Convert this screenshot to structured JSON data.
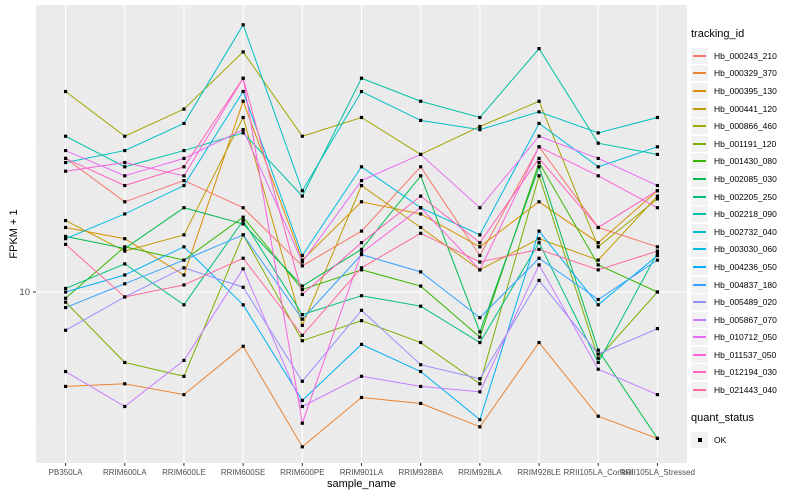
{
  "axes": {
    "y_title": "FPKM + 1",
    "x_title": "sample_name"
  },
  "legend": {
    "tracking_title": "tracking_id",
    "quant_title": "quant_status",
    "quant_ok_label": "OK"
  },
  "chart_data": {
    "type": "line",
    "title": "",
    "xlabel": "sample_name",
    "ylabel": "FPKM + 1",
    "y_scale": "log10",
    "grid": "on",
    "legend_position": "right",
    "panel_bg": "#EBEBEB",
    "grid_color": "#FFFFFF",
    "tick_label_color": "#4D4D4D",
    "point_marker": {
      "shape": "square",
      "color": "#000000",
      "size": 3.2
    },
    "y_ticks": [
      {
        "value": 10,
        "label": "10"
      }
    ],
    "y_minor_ticks": [
      3.162,
      31.623
    ],
    "ylim_log10": [
      0.41,
      2.03
    ],
    "x_categories": [
      "PB350LA",
      "RRIM600LA",
      "RRIM600LE",
      "RRIM600SE",
      "RRIM600PE",
      "RRIM901LA",
      "RRIM928BA",
      "RRIM928LA",
      "RRIM928LE",
      "RRII105LA_Control",
      "RRII105LA_Stressed"
    ],
    "quant_status_values": [
      "OK"
    ],
    "series": [
      {
        "name": "Hb_000243_210",
        "color": "#F8766D",
        "values": [
          30,
          21,
          25,
          20,
          12.4,
          16.5,
          28,
          13.5,
          33,
          17,
          14.5
        ]
      },
      {
        "name": "Hb_000329_370",
        "color": "#EA8331",
        "values": [
          4.6,
          4.7,
          4.3,
          6.4,
          2.8,
          4.2,
          4.0,
          3.3,
          6.6,
          3.6,
          3.0
        ]
      },
      {
        "name": "Hb_000395_130",
        "color": "#D89000",
        "values": [
          17,
          15.5,
          11.5,
          48,
          13,
          21,
          19,
          14.5,
          21,
          15,
          23
        ]
      },
      {
        "name": "Hb_000441_120",
        "color": "#C09B00",
        "values": [
          18,
          14,
          16,
          42,
          7.6,
          24,
          17,
          12,
          15.5,
          13,
          22
        ]
      },
      {
        "name": "Hb_000866_460",
        "color": "#A3A500",
        "values": [
          52,
          36,
          45,
          72,
          36,
          42,
          31,
          39,
          48,
          14.5,
          21.5
        ]
      },
      {
        "name": "Hb_001191_120",
        "color": "#7CAE00",
        "values": [
          9.2,
          5.6,
          5.0,
          16,
          6.7,
          7.9,
          6.6,
          4.7,
          26,
          5.8,
          10
        ]
      },
      {
        "name": "Hb_001430_080",
        "color": "#39B600",
        "values": [
          9.5,
          14.5,
          13,
          18.5,
          10.2,
          12,
          10.5,
          6.9,
          29,
          12.5,
          10
        ]
      },
      {
        "name": "Hb_002085_030",
        "color": "#00BB4E",
        "values": [
          15.8,
          14.3,
          20,
          17.5,
          10.5,
          14.2,
          26,
          7.2,
          28,
          6.2,
          3.0
        ]
      },
      {
        "name": "Hb_002205_250",
        "color": "#00BF7D",
        "values": [
          10.3,
          12.6,
          9.0,
          18,
          8.3,
          9.7,
          8.9,
          6.6,
          15,
          5.6,
          13.8
        ]
      },
      {
        "name": "Hb_002218_090",
        "color": "#00C1A3",
        "values": [
          36,
          28,
          32,
          37,
          22,
          58,
          48,
          42,
          74,
          34,
          31
        ]
      },
      {
        "name": "Hb_002732_040",
        "color": "#00BFC4",
        "values": [
          29,
          32,
          40,
          90,
          23,
          52,
          41,
          38,
          44,
          37,
          42
        ]
      },
      {
        "name": "Hb_003030_060",
        "color": "#00BAE0",
        "values": [
          15.5,
          19,
          24,
          52,
          13.5,
          28,
          20,
          16,
          40,
          28,
          33
        ]
      },
      {
        "name": "Hb_004236_050",
        "color": "#00B0F6",
        "values": [
          10,
          11.5,
          14.5,
          9.0,
          4.1,
          6.5,
          5.2,
          3.5,
          16.5,
          9.0,
          13.5
        ]
      },
      {
        "name": "Hb_004837_180",
        "color": "#35A2FF",
        "values": [
          8.8,
          10.7,
          13,
          16,
          8.0,
          13.6,
          11.8,
          8.1,
          13.2,
          9.4,
          13.0
        ]
      },
      {
        "name": "Hb_005489_020",
        "color": "#9590FF",
        "values": [
          7.3,
          9.6,
          12.2,
          10.4,
          4.8,
          8.6,
          5.5,
          4.9,
          11.0,
          6.0,
          7.4
        ]
      },
      {
        "name": "Hb_005867_070",
        "color": "#C77CFF",
        "values": [
          5.2,
          3.9,
          5.7,
          12.1,
          3.9,
          5.0,
          4.6,
          4.4,
          12.5,
          5.3,
          4.3
        ]
      },
      {
        "name": "Hb_010712_050",
        "color": "#E76BF3",
        "values": [
          32,
          26,
          30,
          38,
          12.8,
          25,
          31,
          20,
          36,
          30,
          24
        ]
      },
      {
        "name": "Hb_011537_050",
        "color": "#FA62DB",
        "values": [
          27,
          29,
          26,
          58,
          3.4,
          13.8,
          20,
          12.0,
          33,
          26,
          20
        ]
      },
      {
        "name": "Hb_012194_030",
        "color": "#FF62BC",
        "values": [
          30,
          24,
          28,
          58,
          9.8,
          15,
          22,
          15,
          30,
          17,
          23
        ]
      },
      {
        "name": "Hb_021443_040",
        "color": "#FF6A98",
        "values": [
          14.8,
          9.6,
          10.6,
          13.2,
          7.0,
          12.2,
          16.2,
          12.8,
          14.2,
          12.0,
          14.0
        ]
      }
    ]
  }
}
